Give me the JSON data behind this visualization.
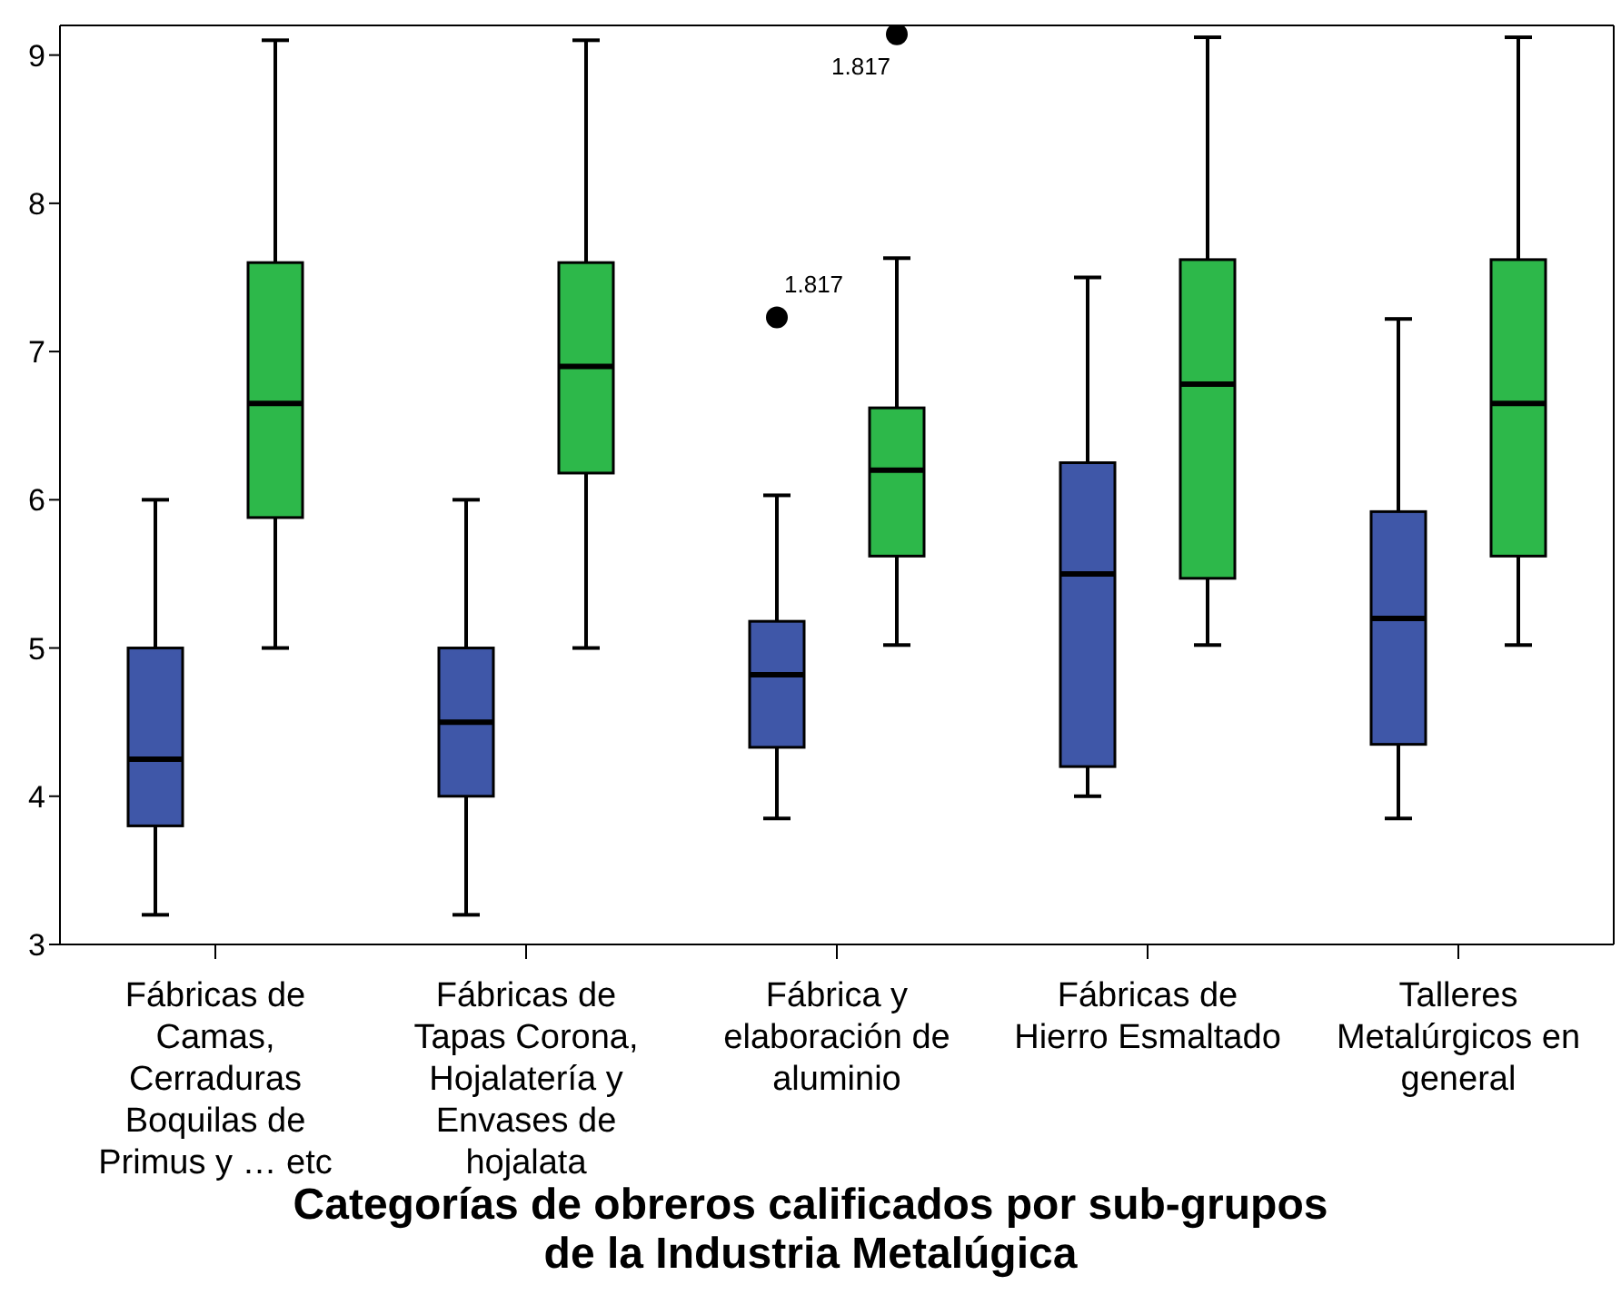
{
  "chart_data": {
    "type": "box",
    "xlabel": "Categorías de obreros calificados por sub-grupos de la Industria Metalúgica",
    "categories": [
      "Fábricas de Camas, Cerraduras Boquilas de Primus y … etc",
      "Fábricas de Tapas Corona, Hojalatería y Envases de hojalata",
      "Fábrica y elaboración de aluminio",
      "Fábricas de Hierro Esmaltado",
      "Talleres Metalúrgicos en general"
    ],
    "series": [
      {
        "color": "#3f57a8",
        "boxes": [
          {
            "low": 3.2,
            "q1": 3.8,
            "median": 4.25,
            "q3": 5.0,
            "high": 6.0
          },
          {
            "low": 3.2,
            "q1": 4.0,
            "median": 4.5,
            "q3": 5.0,
            "high": 6.0
          },
          {
            "low": 3.85,
            "q1": 4.33,
            "median": 4.82,
            "q3": 5.18,
            "high": 6.03,
            "outliers": [
              7.23
            ]
          },
          {
            "low": 4.0,
            "q1": 4.2,
            "median": 5.5,
            "q3": 6.25,
            "high": 7.5
          },
          {
            "low": 3.85,
            "q1": 4.35,
            "median": 5.2,
            "q3": 5.92,
            "high": 7.22
          }
        ]
      },
      {
        "color": "#2db84a",
        "boxes": [
          {
            "low": 5.0,
            "q1": 5.88,
            "median": 6.65,
            "q3": 7.6,
            "high": 9.1
          },
          {
            "low": 5.0,
            "q1": 6.18,
            "median": 6.9,
            "q3": 7.6,
            "high": 9.1
          },
          {
            "low": 5.02,
            "q1": 5.62,
            "median": 6.2,
            "q3": 6.62,
            "high": 7.63,
            "outliers": [
              9.14
            ]
          },
          {
            "low": 5.02,
            "q1": 5.47,
            "median": 6.78,
            "q3": 7.62,
            "high": 9.12
          },
          {
            "low": 5.02,
            "q1": 5.62,
            "median": 6.65,
            "q3": 7.62,
            "high": 9.12
          }
        ]
      }
    ],
    "annotations": [
      "1.817",
      "1.817"
    ],
    "ylim": [
      3,
      9.2
    ],
    "yticks": [
      3,
      4,
      5,
      6,
      7,
      8,
      9
    ]
  }
}
